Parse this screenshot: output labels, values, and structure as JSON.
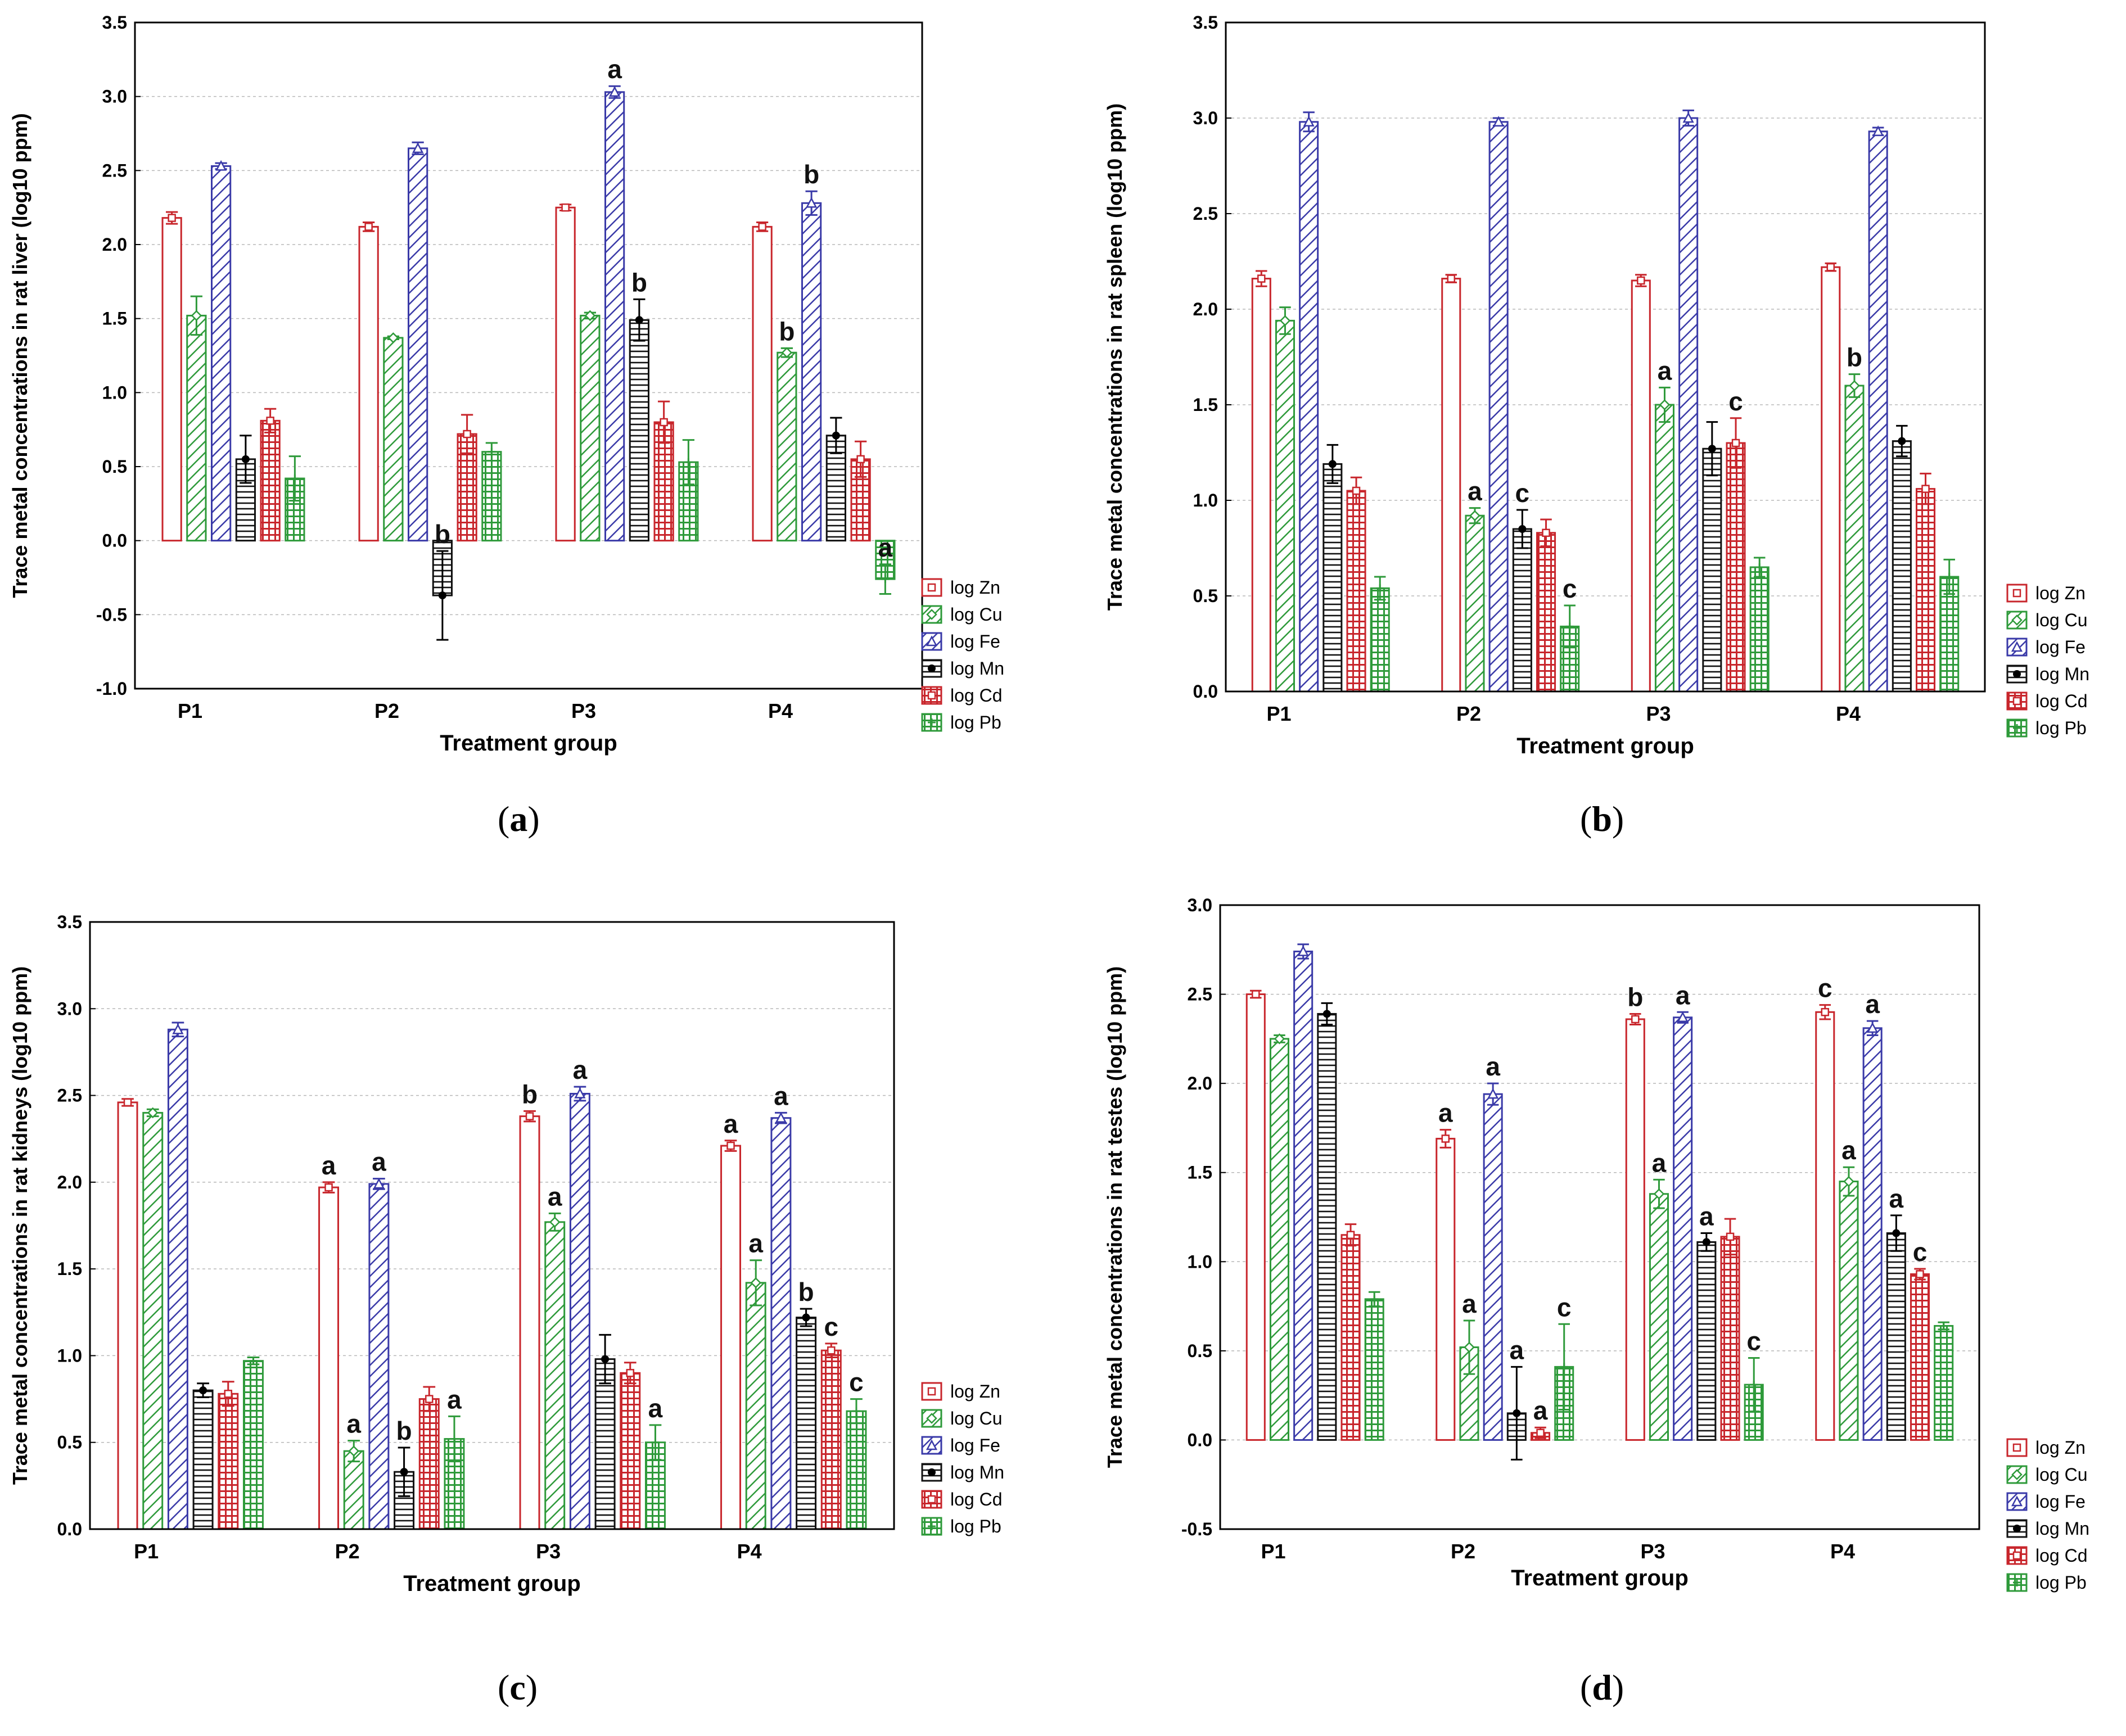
{
  "series_styles": [
    {
      "key": "Zn",
      "color": "#c8262c",
      "pattern": "hollow"
    },
    {
      "key": "Cu",
      "color": "#2e9a3a",
      "pattern": "diag"
    },
    {
      "key": "Fe",
      "color": "#3a3aa8",
      "pattern": "diag"
    },
    {
      "key": "Mn",
      "color": "#111111",
      "pattern": "hlines"
    },
    {
      "key": "Cd",
      "color": "#c8262c",
      "pattern": "grid"
    },
    {
      "key": "Pb",
      "color": "#2e9a3a",
      "pattern": "grid"
    }
  ],
  "captions": [
    {
      "open": "(",
      "letter": "a",
      "close": ")"
    },
    {
      "open": "(",
      "letter": "b",
      "close": ")"
    },
    {
      "open": "(",
      "letter": "c",
      "close": ")"
    },
    {
      "open": "(",
      "letter": "d",
      "close": ")"
    }
  ],
  "chart_data": [
    {
      "type": "bar",
      "title": "",
      "xlabel": "Treatment group",
      "ylabel": "Trace metal concentrations in rat  liver (log10 ppm)",
      "categories": [
        "P1",
        "P2",
        "P3",
        "P4"
      ],
      "ylim": [
        -1.0,
        3.5
      ],
      "yticks": [
        "-1.0",
        "-0.5",
        "0.0",
        "0.5",
        "1.0",
        "1.5",
        "2.0",
        "2.5",
        "3.0",
        "3.5"
      ],
      "ytick_values": [
        -1.0,
        -0.5,
        0.0,
        0.5,
        1.0,
        1.5,
        2.0,
        2.5,
        3.0,
        3.5
      ],
      "grid": true,
      "legend": "right-bottom",
      "series": [
        {
          "name": "log Zn",
          "values": [
            2.18,
            2.12,
            2.25,
            2.12
          ],
          "errors": [
            0.04,
            0.03,
            0.02,
            0.03
          ],
          "labels": [
            "",
            "",
            "",
            ""
          ]
        },
        {
          "name": "log Cu",
          "values": [
            1.52,
            1.37,
            1.52,
            1.27
          ],
          "errors": [
            0.13,
            0.01,
            0.02,
            0.03
          ],
          "labels": [
            "",
            "",
            "",
            "b"
          ]
        },
        {
          "name": "log Fe",
          "values": [
            2.53,
            2.65,
            3.03,
            2.28
          ],
          "errors": [
            0.02,
            0.04,
            0.04,
            0.08
          ],
          "labels": [
            "",
            "",
            "a",
            "b"
          ]
        },
        {
          "name": "log Mn",
          "values": [
            0.55,
            -0.37,
            1.49,
            0.71
          ],
          "errors": [
            0.16,
            0.3,
            0.14,
            0.12
          ],
          "labels": [
            "",
            "b",
            "b",
            ""
          ]
        },
        {
          "name": "log Cd",
          "values": [
            0.81,
            0.72,
            0.8,
            0.55
          ],
          "errors": [
            0.08,
            0.13,
            0.14,
            0.12
          ],
          "labels": [
            "",
            "",
            "",
            ""
          ]
        },
        {
          "name": "log Pb",
          "values": [
            0.42,
            0.6,
            0.53,
            -0.26
          ],
          "errors": [
            0.15,
            0.06,
            0.15,
            0.1
          ],
          "labels": [
            "",
            "",
            "",
            "a"
          ]
        }
      ]
    },
    {
      "type": "bar",
      "title": "",
      "xlabel": "Treatment group",
      "ylabel": "Trace metal concentrations in rat spleen (log10 ppm)",
      "categories": [
        "P1",
        "P2",
        "P3",
        "P4"
      ],
      "ylim": [
        0.0,
        3.5
      ],
      "yticks": [
        "0.0",
        "0.5",
        "1.0",
        "1.5",
        "2.0",
        "2.5",
        "3.0",
        "3.5"
      ],
      "ytick_values": [
        0.0,
        0.5,
        1.0,
        1.5,
        2.0,
        2.5,
        3.0,
        3.5
      ],
      "grid": true,
      "legend": "right-bottom",
      "series": [
        {
          "name": "log Zn",
          "values": [
            2.16,
            2.16,
            2.15,
            2.22
          ],
          "errors": [
            0.04,
            0.02,
            0.03,
            0.02
          ],
          "labels": [
            "",
            "",
            "",
            ""
          ]
        },
        {
          "name": "log Cu",
          "values": [
            1.94,
            0.92,
            1.5,
            1.6
          ],
          "errors": [
            0.07,
            0.04,
            0.09,
            0.06
          ],
          "labels": [
            "",
            "a",
            "a",
            "b"
          ]
        },
        {
          "name": "log Fe",
          "values": [
            2.98,
            2.98,
            3.0,
            2.93
          ],
          "errors": [
            0.05,
            0.02,
            0.04,
            0.02
          ],
          "labels": [
            "",
            "",
            "",
            ""
          ]
        },
        {
          "name": "log Mn",
          "values": [
            1.19,
            0.85,
            1.27,
            1.31
          ],
          "errors": [
            0.1,
            0.1,
            0.14,
            0.08
          ],
          "labels": [
            "",
            "c",
            "",
            ""
          ]
        },
        {
          "name": "log Cd",
          "values": [
            1.05,
            0.83,
            1.3,
            1.06
          ],
          "errors": [
            0.07,
            0.07,
            0.13,
            0.08
          ],
          "labels": [
            "",
            "",
            "c",
            ""
          ]
        },
        {
          "name": "log Pb",
          "values": [
            0.54,
            0.34,
            0.65,
            0.6
          ],
          "errors": [
            0.06,
            0.11,
            0.05,
            0.09
          ],
          "labels": [
            "",
            "c",
            "",
            ""
          ]
        }
      ]
    },
    {
      "type": "bar",
      "title": "",
      "xlabel": "Treatment group",
      "ylabel": "Trace metal concentrations in rat kidneys (log10 ppm)",
      "categories": [
        "P1",
        "P2",
        "P3",
        "P4"
      ],
      "ylim": [
        0.0,
        3.5
      ],
      "yticks": [
        "0.0",
        "0.5",
        "1.0",
        "1.5",
        "2.0",
        "2.5",
        "3.0",
        "3.5"
      ],
      "ytick_values": [
        0.0,
        0.5,
        1.0,
        1.5,
        2.0,
        2.5,
        3.0,
        3.5
      ],
      "grid": true,
      "legend": "right-bottom",
      "series": [
        {
          "name": "log Zn",
          "values": [
            2.46,
            1.97,
            2.38,
            2.21
          ],
          "errors": [
            0.02,
            0.03,
            0.03,
            0.03
          ],
          "labels": [
            "",
            "a",
            "b",
            "a"
          ]
        },
        {
          "name": "log Cu",
          "values": [
            2.4,
            0.45,
            1.77,
            1.42
          ],
          "errors": [
            0.02,
            0.06,
            0.05,
            0.13
          ],
          "labels": [
            "",
            "a",
            "a",
            "a"
          ]
        },
        {
          "name": "log Fe",
          "values": [
            2.88,
            1.99,
            2.51,
            2.37
          ],
          "errors": [
            0.04,
            0.03,
            0.04,
            0.03
          ],
          "labels": [
            "",
            "a",
            "a",
            "a"
          ]
        },
        {
          "name": "log Mn",
          "values": [
            0.8,
            0.33,
            0.98,
            1.22
          ],
          "errors": [
            0.04,
            0.14,
            0.14,
            0.05
          ],
          "labels": [
            "",
            "b",
            "",
            "b"
          ]
        },
        {
          "name": "log Cd",
          "values": [
            0.78,
            0.75,
            0.9,
            1.03
          ],
          "errors": [
            0.07,
            0.07,
            0.06,
            0.04
          ],
          "labels": [
            "",
            "",
            "",
            "c"
          ]
        },
        {
          "name": "log Pb",
          "values": [
            0.97,
            0.52,
            0.5,
            0.68
          ],
          "errors": [
            0.02,
            0.13,
            0.1,
            0.07
          ],
          "labels": [
            "",
            "a",
            "a",
            "c"
          ]
        }
      ]
    },
    {
      "type": "bar",
      "title": "",
      "xlabel": "Treatment group",
      "ylabel": "Trace metal concentrations in rat testes  (log10 ppm)",
      "categories": [
        "P1",
        "P2",
        "P3",
        "P4"
      ],
      "ylim": [
        -0.5,
        3.0
      ],
      "yticks": [
        "-0.5",
        "0.0",
        "0.5",
        "1.0",
        "1.5",
        "2.0",
        "2.5",
        "3.0"
      ],
      "ytick_values": [
        -0.5,
        0.0,
        0.5,
        1.0,
        1.5,
        2.0,
        2.5,
        3.0
      ],
      "grid": true,
      "legend": "right-bottom",
      "series": [
        {
          "name": "log Zn",
          "values": [
            2.5,
            1.69,
            2.36,
            2.4
          ],
          "errors": [
            0.02,
            0.05,
            0.03,
            0.04
          ],
          "labels": [
            "",
            "a",
            "b",
            "c"
          ]
        },
        {
          "name": "log Cu",
          "values": [
            2.25,
            0.52,
            1.38,
            1.45
          ],
          "errors": [
            0.02,
            0.15,
            0.08,
            0.08
          ],
          "labels": [
            "",
            "a",
            "a",
            "a"
          ]
        },
        {
          "name": "log Fe",
          "values": [
            2.74,
            1.94,
            2.37,
            2.31
          ],
          "errors": [
            0.04,
            0.06,
            0.03,
            0.04
          ],
          "labels": [
            "",
            "a",
            "a",
            "a"
          ]
        },
        {
          "name": "log Mn",
          "values": [
            2.39,
            0.15,
            1.11,
            1.16
          ],
          "errors": [
            0.06,
            0.26,
            0.05,
            0.1
          ],
          "labels": [
            "",
            "a",
            "a",
            "a"
          ]
        },
        {
          "name": "log Cd",
          "values": [
            1.15,
            0.04,
            1.14,
            0.93
          ],
          "errors": [
            0.06,
            0.03,
            0.1,
            0.03
          ],
          "labels": [
            "",
            "a",
            "",
            "c"
          ]
        },
        {
          "name": "log Pb",
          "values": [
            0.79,
            0.41,
            0.31,
            0.64
          ],
          "errors": [
            0.04,
            0.24,
            0.15,
            0.02
          ],
          "labels": [
            "",
            "c",
            "c",
            ""
          ]
        }
      ]
    }
  ]
}
